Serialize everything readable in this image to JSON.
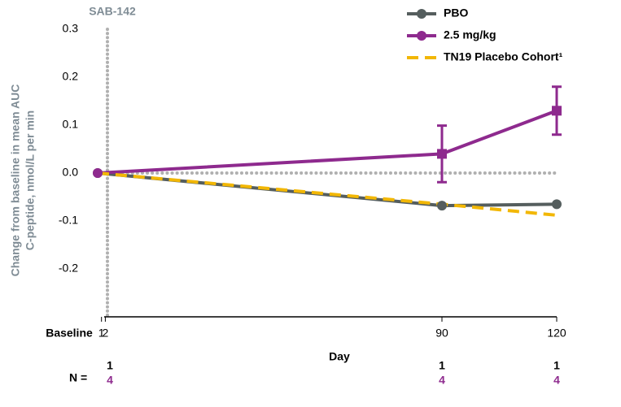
{
  "chart_data": {
    "type": "line",
    "title": "SAB-142",
    "x_label": "Day",
    "y_label": [
      "Change from baseline in mean AUC",
      "C-peptide, nmol/L per min"
    ],
    "baseline_label": "Baseline",
    "xlim": [
      0,
      120
    ],
    "xticks": [
      1,
      2,
      90,
      120
    ],
    "ylim": [
      -0.3,
      0.3
    ],
    "yticks": [
      0.3,
      0.2,
      0.1,
      {
        "value": 0,
        "label": "0.0"
      },
      -0.1,
      -0.2
    ],
    "legend": "top-right",
    "series": [
      {
        "name": "PBO",
        "color": "#555e5e",
        "marker": "circle",
        "dash": false,
        "x": [
          0,
          90,
          120
        ],
        "values": [
          0,
          -0.068,
          -0.065
        ]
      },
      {
        "name": "2.5 mg/kg",
        "color": "#8e2a8e",
        "marker": "square",
        "dash": false,
        "x": [
          0,
          90,
          120
        ],
        "values": [
          0,
          0.04,
          0.13
        ],
        "errors": [
          null,
          0.059,
          0.05
        ]
      },
      {
        "name": "TN19 Placebo Cohort¹",
        "color": "#f2b705",
        "marker": "none",
        "dash": true,
        "x": [
          0,
          90,
          120
        ],
        "values": [
          0,
          -0.065,
          -0.088
        ]
      }
    ],
    "n_table": {
      "label": "N =",
      "rows": [
        {
          "color": "#000000",
          "values": [
            1,
            1,
            1
          ]
        },
        {
          "color": "#8e2a8e",
          "values": [
            4,
            4,
            4
          ]
        }
      ]
    }
  }
}
